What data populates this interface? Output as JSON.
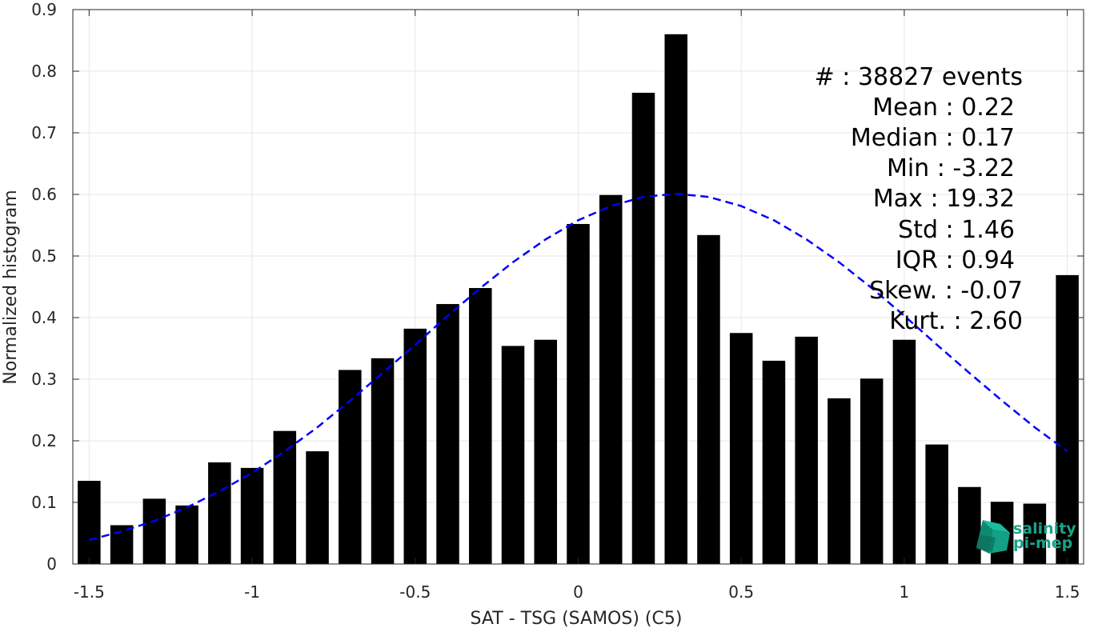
{
  "chart_data": {
    "type": "bar",
    "xlabel": "SAT - TSG (SAMOS) (C5)",
    "ylabel": "Normalized histogram",
    "xlim": [
      -1.55,
      1.55
    ],
    "ylim": [
      0,
      0.9
    ],
    "grid": true,
    "x_ticks": [
      -1.5,
      -1,
      -0.5,
      0,
      0.5,
      1,
      1.5
    ],
    "x_tick_labels": [
      "-1.5",
      "-1",
      "-0.5",
      "0",
      "0.5",
      "1",
      "1.5"
    ],
    "y_ticks": [
      0,
      0.1,
      0.2,
      0.3,
      0.4,
      0.5,
      0.6,
      0.7,
      0.8,
      0.9
    ],
    "y_tick_labels": [
      "0",
      "0.1",
      "0.2",
      "0.3",
      "0.4",
      "0.5",
      "0.6",
      "0.7",
      "0.8",
      "0.9"
    ],
    "bar_width": 0.07,
    "series": [
      {
        "kind": "bar",
        "color": "#000000",
        "x": [
          -1.5,
          -1.4,
          -1.3,
          -1.2,
          -1.1,
          -1.0,
          -0.9,
          -0.8,
          -0.7,
          -0.6,
          -0.5,
          -0.4,
          -0.3,
          -0.2,
          -0.1,
          0.0,
          0.1,
          0.2,
          0.3,
          0.4,
          0.5,
          0.6,
          0.7,
          0.8,
          0.9,
          1.0,
          1.1,
          1.2,
          1.3,
          1.4,
          1.5
        ],
        "values": [
          0.135,
          0.063,
          0.106,
          0.095,
          0.165,
          0.156,
          0.216,
          0.183,
          0.315,
          0.334,
          0.382,
          0.422,
          0.448,
          0.354,
          0.364,
          0.552,
          0.599,
          0.765,
          0.86,
          0.534,
          0.375,
          0.33,
          0.369,
          0.269,
          0.301,
          0.364,
          0.194,
          0.125,
          0.101,
          0.098,
          0.469
        ]
      },
      {
        "kind": "line",
        "color": "#0000ff",
        "dashed": true,
        "x": [
          -1.5,
          -1.4,
          -1.3,
          -1.2,
          -1.1,
          -1.0,
          -0.9,
          -0.8,
          -0.7,
          -0.6,
          -0.5,
          -0.4,
          -0.3,
          -0.2,
          -0.1,
          0.0,
          0.1,
          0.2,
          0.3,
          0.4,
          0.5,
          0.6,
          0.7,
          0.8,
          0.9,
          1.0,
          1.1,
          1.2,
          1.3,
          1.4,
          1.5
        ],
        "values": [
          0.039,
          0.053,
          0.07,
          0.092,
          0.118,
          0.148,
          0.183,
          0.222,
          0.265,
          0.31,
          0.356,
          0.403,
          0.448,
          0.49,
          0.527,
          0.558,
          0.581,
          0.596,
          0.601,
          0.596,
          0.581,
          0.558,
          0.527,
          0.49,
          0.448,
          0.403,
          0.356,
          0.31,
          0.265,
          0.222,
          0.183
        ]
      }
    ],
    "annotations": [
      "#  : 38827 events",
      "Mean : 0.22",
      "Median : 0.17",
      "Min : -3.22",
      "Max : 19.32",
      "Std : 1.46",
      "IQR : 0.94",
      "Skew. : -0.07",
      "Kurt. : 2.60"
    ]
  },
  "logo": {
    "line1": "salinity",
    "line2": "pi-mep"
  }
}
